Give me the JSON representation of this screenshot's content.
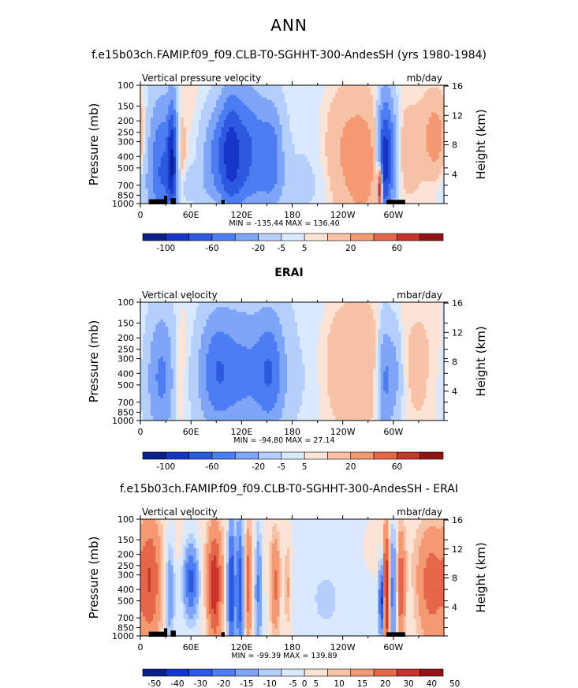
{
  "page": {
    "title": "ANN"
  },
  "colors": {
    "c10": [
      "#0b1f8c",
      "#1734c8",
      "#2c59e0",
      "#4c7df2",
      "#7ea5f7",
      "#b4cffc",
      "#dbe9ff",
      "#fbe3d6",
      "#f8c2a6",
      "#f49972",
      "#e6664a",
      "#c7352a",
      "#8f1413"
    ],
    "c12": [
      "#0b1f8c",
      "#1734c8",
      "#2c59e0",
      "#4c7df2",
      "#7ea5f7",
      "#b4cffc",
      "#dbe9ff",
      "#fbe3d6",
      "#f8c2a6",
      "#f49972",
      "#e6664a",
      "#c7352a",
      "#8f1413"
    ]
  },
  "chart_data": [
    {
      "type": "heatmap",
      "title": "f.e15b03ch.FAMIP.f09_f09.CLB-T0-SGHHT-300-AndesSH (yrs 1980-1984)",
      "left_label": "Vertical pressure velocity",
      "units": "mb/day",
      "ylabel": "Pressure (mb)",
      "ylabel_right": "Height (km)",
      "yticks": [
        "100",
        "150",
        "200",
        "250",
        "300",
        "400",
        "500",
        "700",
        "850",
        "1000"
      ],
      "yticks_right": [
        "16",
        "12",
        "8",
        "4"
      ],
      "xticks": [
        "0",
        "60E",
        "120E",
        "180",
        "120W",
        "60W"
      ],
      "stats": "MIN = -135.44   MAX = 136.40",
      "colorbar_labels": [
        "-100",
        "-60",
        "-20",
        "-5",
        "5",
        "20",
        "60"
      ],
      "colorbar_label_positions": [
        1,
        3,
        5,
        6,
        7,
        9,
        11
      ],
      "palette": "c10",
      "features": [
        {
          "lon": 25,
          "p": 450,
          "wl": 12,
          "wp": 0.9,
          "v": -60
        },
        {
          "lon": 38,
          "p": 400,
          "wl": 4,
          "wp": 0.8,
          "v": -70
        },
        {
          "lon": 48,
          "p": 400,
          "wl": 4,
          "wp": 0.6,
          "v": 20
        },
        {
          "lon": 90,
          "p": 350,
          "wl": 12,
          "wp": 0.6,
          "v": -40
        },
        {
          "lon": 108,
          "p": 350,
          "wl": 10,
          "wp": 0.9,
          "v": -70
        },
        {
          "lon": 130,
          "p": 330,
          "wl": 12,
          "wp": 0.8,
          "v": -55
        },
        {
          "lon": 155,
          "p": 380,
          "wl": 10,
          "wp": 0.7,
          "v": -50
        },
        {
          "lon": 100,
          "p": 700,
          "wl": 60,
          "wp": 0.25,
          "v": -12
        },
        {
          "lon": 200,
          "p": 300,
          "wl": 25,
          "wp": 1.4,
          "v": -6
        },
        {
          "lon": 245,
          "p": 380,
          "wl": 18,
          "wp": 0.8,
          "v": 22
        },
        {
          "lon": 265,
          "p": 500,
          "wl": 12,
          "wp": 0.7,
          "v": 25
        },
        {
          "lon": 288,
          "p": 450,
          "wl": 5,
          "wp": 0.9,
          "v": -70
        },
        {
          "lon": 296,
          "p": 380,
          "wl": 6,
          "wp": 0.8,
          "v": -55
        },
        {
          "lon": 284,
          "p": 750,
          "wl": 2,
          "wp": 0.3,
          "v": 110
        },
        {
          "lon": 320,
          "p": 400,
          "wl": 12,
          "wp": 0.6,
          "v": 12
        },
        {
          "lon": 350,
          "p": 280,
          "wl": 10,
          "wp": 0.5,
          "v": 30
        }
      ],
      "mask": [
        [
          10,
          30,
          1000,
          920
        ],
        [
          28,
          32,
          1000,
          860
        ],
        [
          36,
          42,
          1000,
          900
        ],
        [
          96,
          100,
          1000,
          930
        ],
        [
          292,
          314,
          1000,
          930
        ]
      ]
    },
    {
      "type": "heatmap",
      "title": "ERAI",
      "left_label": "Vertical velocity",
      "units": "mbar/day",
      "ylabel": "Pressure (mb)",
      "ylabel_right": "Height (km)",
      "yticks": [
        "100",
        "150",
        "200",
        "250",
        "300",
        "400",
        "500",
        "700",
        "850",
        "1000"
      ],
      "yticks_right": [
        "16",
        "12",
        "8",
        "4"
      ],
      "xticks": [
        "0",
        "60E",
        "120E",
        "180",
        "120W",
        "60W"
      ],
      "stats": "MIN = -94.80   MAX =  27.14",
      "colorbar_labels": [
        "-100",
        "-60",
        "-20",
        "-5",
        "5",
        "20",
        "60"
      ],
      "colorbar_label_positions": [
        1,
        3,
        5,
        6,
        7,
        9,
        11
      ],
      "palette": "c10",
      "features": [
        {
          "lon": 25,
          "p": 420,
          "wl": 12,
          "wp": 0.9,
          "v": -45
        },
        {
          "lon": 45,
          "p": 450,
          "wl": 6,
          "wp": 0.7,
          "v": 12
        },
        {
          "lon": 88,
          "p": 380,
          "wl": 14,
          "wp": 0.8,
          "v": -40
        },
        {
          "lon": 120,
          "p": 380,
          "wl": 25,
          "wp": 0.9,
          "v": -45
        },
        {
          "lon": 155,
          "p": 380,
          "wl": 12,
          "wp": 0.8,
          "v": -45
        },
        {
          "lon": 200,
          "p": 250,
          "wl": 20,
          "wp": 1.5,
          "v": -8
        },
        {
          "lon": 250,
          "p": 380,
          "wl": 30,
          "wp": 0.9,
          "v": 14
        },
        {
          "lon": 290,
          "p": 450,
          "wl": 6,
          "wp": 0.8,
          "v": -45
        },
        {
          "lon": 302,
          "p": 400,
          "wl": 6,
          "wp": 0.7,
          "v": -25
        },
        {
          "lon": 330,
          "p": 400,
          "wl": 10,
          "wp": 0.7,
          "v": 8
        }
      ],
      "mask": []
    },
    {
      "type": "heatmap",
      "title": "f.e15b03ch.FAMIP.f09_f09.CLB-T0-SGHHT-300-AndesSH - ERAI",
      "left_label": "Vertical velocity",
      "units": "mbar/day",
      "ylabel": "Pressure (mb)",
      "ylabel_right": "Height (km)",
      "yticks": [
        "100",
        "150",
        "200",
        "250",
        "300",
        "400",
        "500",
        "700",
        "850",
        "1000"
      ],
      "yticks_right": [
        "16",
        "12",
        "8",
        "4"
      ],
      "xticks": [
        "0",
        "60E",
        "120E",
        "180",
        "120W",
        "60W"
      ],
      "stats": "MIN = -99.39   MAX = 139.89",
      "colorbar_labels": [
        "-50",
        "-40",
        "-30",
        "-20",
        "-15",
        "-10",
        "-5",
        "0",
        "5",
        "10",
        "15",
        "20",
        "30",
        "40",
        "50"
      ],
      "colorbar_label_positions": [
        0.5,
        1.5,
        2.5,
        3.5,
        4.5,
        5.5,
        6.5,
        7,
        7.5,
        8.5,
        9.5,
        10.5,
        11.5,
        12.5,
        13.5
      ],
      "palette": "c12",
      "features": [
        {
          "lon": 12,
          "p": 350,
          "wl": 9,
          "wp": 0.9,
          "v": 28
        },
        {
          "lon": 35,
          "p": 400,
          "wl": 4,
          "wp": 0.7,
          "v": -18
        },
        {
          "lon": 60,
          "p": 330,
          "wl": 6,
          "wp": 0.5,
          "v": -35
        },
        {
          "lon": 88,
          "p": 380,
          "wl": 6,
          "wp": 0.8,
          "v": 38
        },
        {
          "lon": 108,
          "p": 380,
          "wl": 3,
          "wp": 0.9,
          "v": -45
        },
        {
          "lon": 118,
          "p": 380,
          "wl": 3,
          "wp": 0.9,
          "v": -40
        },
        {
          "lon": 128,
          "p": 380,
          "wl": 3,
          "wp": 0.8,
          "v": 25
        },
        {
          "lon": 140,
          "p": 380,
          "wl": 3,
          "wp": 0.8,
          "v": -22
        },
        {
          "lon": 160,
          "p": 380,
          "wl": 4,
          "wp": 0.7,
          "v": 22
        },
        {
          "lon": 175,
          "p": 400,
          "wl": 3,
          "wp": 0.6,
          "v": 12
        },
        {
          "lon": 220,
          "p": 300,
          "wl": 30,
          "wp": 1.5,
          "v": -6
        },
        {
          "lon": 286,
          "p": 500,
          "wl": 2,
          "wp": 0.5,
          "v": -50
        },
        {
          "lon": 292,
          "p": 450,
          "wl": 3,
          "wp": 0.9,
          "v": 45
        },
        {
          "lon": 300,
          "p": 400,
          "wl": 4,
          "wp": 0.8,
          "v": -30
        },
        {
          "lon": 308,
          "p": 400,
          "wl": 4,
          "wp": 0.8,
          "v": 30
        },
        {
          "lon": 345,
          "p": 380,
          "wl": 12,
          "wp": 0.8,
          "v": 25
        }
      ],
      "mask": [
        [
          10,
          30,
          1000,
          920
        ],
        [
          28,
          32,
          1000,
          860
        ],
        [
          36,
          42,
          1000,
          900
        ],
        [
          96,
          100,
          1000,
          930
        ],
        [
          292,
          314,
          1000,
          930
        ]
      ]
    }
  ]
}
